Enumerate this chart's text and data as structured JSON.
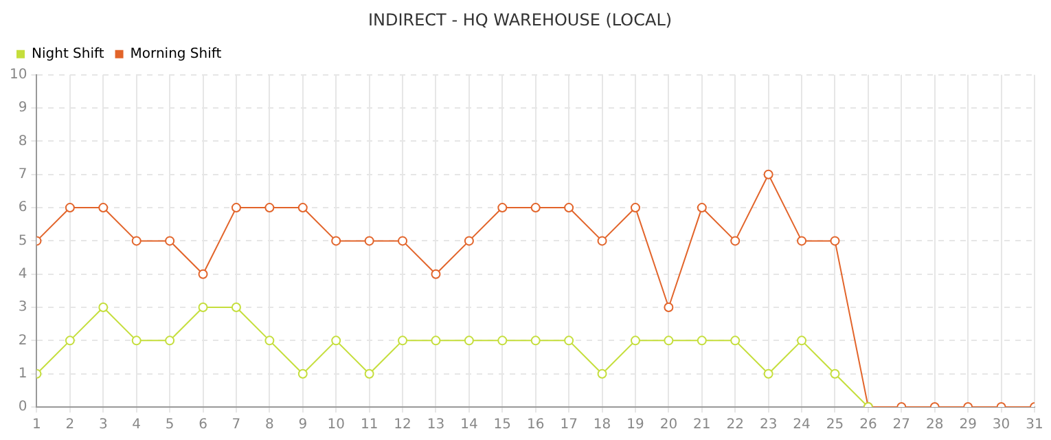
{
  "chart_data": {
    "type": "line",
    "title": "INDIRECT - HQ WAREHOUSE (LOCAL)",
    "x": [
      1,
      2,
      3,
      4,
      5,
      6,
      7,
      8,
      9,
      10,
      11,
      12,
      13,
      14,
      15,
      16,
      17,
      18,
      19,
      20,
      21,
      22,
      23,
      24,
      25,
      26,
      27,
      28,
      29,
      30,
      31
    ],
    "series": [
      {
        "name": "Night Shift",
        "color": "#c5de3c",
        "values": [
          1,
          2,
          3,
          2,
          2,
          3,
          3,
          2,
          1,
          2,
          1,
          2,
          2,
          2,
          2,
          2,
          2,
          1,
          2,
          2,
          2,
          2,
          1,
          2,
          1,
          0,
          null,
          null,
          null,
          null,
          null
        ]
      },
      {
        "name": "Morning Shift",
        "color": "#e2642a",
        "values": [
          5,
          6,
          6,
          5,
          5,
          4,
          6,
          6,
          6,
          5,
          5,
          5,
          4,
          5,
          6,
          6,
          6,
          5,
          6,
          3,
          6,
          5,
          7,
          5,
          5,
          0,
          0,
          0,
          0,
          0,
          0
        ]
      }
    ],
    "xlim": [
      1,
      31
    ],
    "xticks": [
      1,
      2,
      3,
      4,
      5,
      6,
      7,
      8,
      9,
      10,
      11,
      12,
      13,
      14,
      15,
      16,
      17,
      18,
      19,
      20,
      21,
      22,
      23,
      24,
      25,
      26,
      27,
      28,
      29,
      30,
      31
    ],
    "ylim": [
      0,
      10
    ],
    "yticks": [
      0,
      1,
      2,
      3,
      4,
      5,
      6,
      7,
      8,
      9,
      10
    ],
    "grid": true,
    "legend": "top left",
    "marker": "circle",
    "line_style": "solid"
  }
}
